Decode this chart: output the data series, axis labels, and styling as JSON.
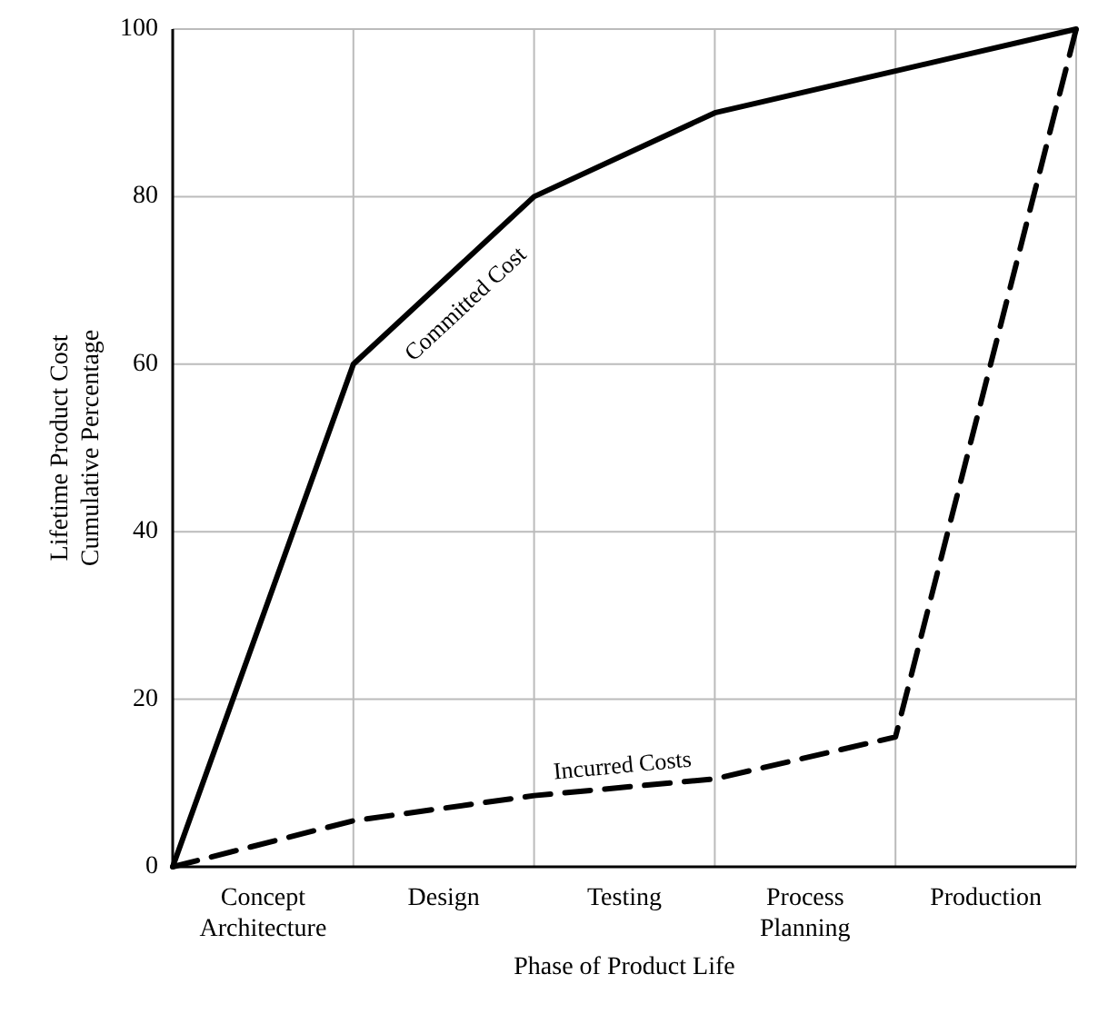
{
  "chart_data": {
    "type": "line",
    "xlabel": "Phase of Product Life",
    "ylabel": "Lifetime Product Cost\nCumulative Percentage",
    "categories": [
      null,
      "Concept\nArchitecture",
      null,
      "Design",
      null,
      "Testing",
      null,
      "Process\nPlanning",
      null,
      "Production",
      null
    ],
    "ylim": [
      0,
      100
    ],
    "yticks": [
      0,
      20,
      40,
      60,
      80,
      100
    ],
    "grid": true,
    "series": [
      {
        "name": "Committed Cost",
        "color": "#000000",
        "line_style": "solid",
        "values": [
          0,
          null,
          60,
          null,
          80,
          null,
          90,
          null,
          95,
          null,
          100
        ]
      },
      {
        "name": "Incurred Costs",
        "color": "#000000",
        "line_style": "dashed",
        "values": [
          0,
          null,
          5.5,
          null,
          8.5,
          null,
          10.5,
          null,
          15.5,
          null,
          100
        ]
      }
    ]
  }
}
